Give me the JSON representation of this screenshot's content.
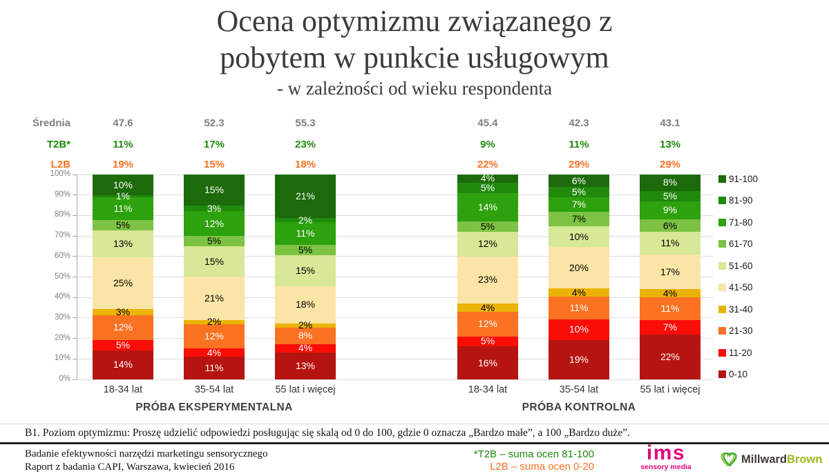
{
  "title": {
    "line1": "Ocena optymizmu związanego z",
    "line2": "pobytem w punkcie usługowym",
    "subtitle": "- w zależności od wieku respondenta"
  },
  "stats": {
    "rows": [
      {
        "label": "Średnia",
        "color": "#7F7F7F",
        "values": [
          "47.6",
          "52.3",
          "55.3",
          "45.4",
          "42.3",
          "43.1"
        ]
      },
      {
        "label": "T2B*",
        "color": "#1E8A0D",
        "values": [
          "11%",
          "17%",
          "23%",
          "9%",
          "11%",
          "13%"
        ]
      },
      {
        "label": "L2B",
        "color": "#F97122",
        "values": [
          "19%",
          "15%",
          "18%",
          "22%",
          "29%",
          "29%"
        ]
      }
    ]
  },
  "chart_data": {
    "type": "bar",
    "stacked": true,
    "grid": true,
    "legend_position": "right",
    "title": "Ocena optymizmu związanego z pobytem w punkcie usługowym - w zależności od wieku respondenta",
    "xlabel": "",
    "ylabel": "",
    "ylim": [
      0,
      100
    ],
    "y_ticks": [
      "100%",
      "90%",
      "80%",
      "70%",
      "60%",
      "50%",
      "40%",
      "30%",
      "20%",
      "10%",
      "0%"
    ],
    "categories": [
      "18-34 lat",
      "35-54 lat",
      "55 lat i więcej",
      "18-34 lat",
      "35-54 lat",
      "55 lat i więcej"
    ],
    "groups": [
      {
        "label": "PRÓBA EKSPERYMENTALNA",
        "bars": [
          0,
          1,
          2
        ]
      },
      {
        "label": "PRÓBA KONTROLNA",
        "bars": [
          3,
          4,
          5
        ]
      }
    ],
    "series": [
      {
        "name": "91-100",
        "color": "#1C6A0A",
        "text": "#FFFFFF",
        "values": [
          10,
          15,
          21,
          4,
          6,
          8
        ]
      },
      {
        "name": "81-90",
        "color": "#218A0D",
        "text": "#FFFFFF",
        "values": [
          1,
          3,
          2,
          5,
          5,
          5
        ]
      },
      {
        "name": "71-80",
        "color": "#2EA10E",
        "text": "#FFFFFF",
        "values": [
          11,
          12,
          11,
          14,
          7,
          9
        ]
      },
      {
        "name": "61-70",
        "color": "#7DC243",
        "text": "#000000",
        "values": [
          5,
          5,
          5,
          5,
          7,
          6
        ]
      },
      {
        "name": "51-60",
        "color": "#D7E897",
        "text": "#000000",
        "values": [
          13,
          15,
          15,
          12,
          10,
          11
        ]
      },
      {
        "name": "41-50",
        "color": "#FAE5A6",
        "text": "#000000",
        "values": [
          25,
          21,
          18,
          23,
          20,
          17
        ]
      },
      {
        "name": "31-40",
        "color": "#EBB307",
        "text": "#000000",
        "values": [
          3,
          2,
          2,
          4,
          4,
          4
        ]
      },
      {
        "name": "21-30",
        "color": "#FB7223",
        "text": "#FFFFFF",
        "values": [
          12,
          12,
          8,
          12,
          11,
          11
        ]
      },
      {
        "name": "11-20",
        "color": "#FA0D07",
        "text": "#FFFFFF",
        "values": [
          5,
          4,
          4,
          5,
          10,
          7
        ]
      },
      {
        "name": "0-10",
        "color": "#B51410",
        "text": "#FFFFFF",
        "values": [
          14,
          11,
          13,
          16,
          19,
          22
        ]
      }
    ]
  },
  "note": "B1. Poziom optymizmu: Proszę udzielić odpowiedzi posługując się skalą od 0 do 100, gdzie 0 oznacza „Bardzo małe”, a 100 „Bardzo duże”.",
  "footer": {
    "left_line1": "Badanie efektywności narzędzi marketingu sensorycznego",
    "left_line2": "Raport z badania CAPI, Warszawa, kwiecień 2016",
    "t2b_note": "*T2B – suma ocen 81-100",
    "l2b_note": "L2B – suma ocen 0-20",
    "logos": {
      "ims": {
        "text": "ims",
        "sub": "sensory media",
        "color": "#E2077A"
      },
      "millward": {
        "part1": "Millward",
        "part2": "Brown",
        "color1": "#3D3935",
        "color2": "#9DBB1C"
      }
    }
  }
}
